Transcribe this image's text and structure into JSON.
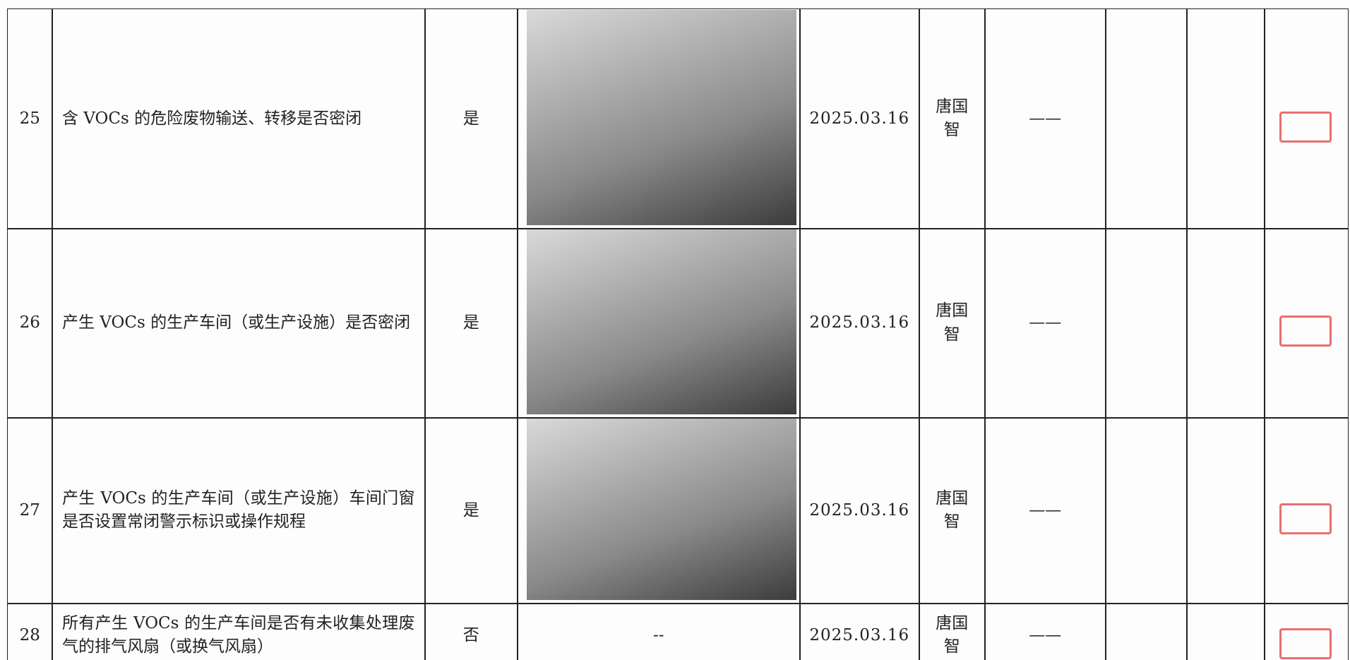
{
  "table": {
    "rows": [
      {
        "no": "25",
        "item": "含 VOCs 的危险废物输送、转移是否密闭",
        "result": "是",
        "date": "2025.03.16",
        "inspector": "唐国智",
        "remark": "——"
      },
      {
        "no": "26",
        "item": "产生 VOCs 的生产车间（或生产设施）是否密闭",
        "result": "是",
        "date": "2025.03.16",
        "inspector": "唐国智",
        "remark": "——"
      },
      {
        "no": "27",
        "item": "产生 VOCs 的生产车间（或生产设施）车间门窗是否设置常闭警示标识或操作规程",
        "result": "是",
        "date": "2025.03.16",
        "inspector": "唐国智",
        "remark": "——"
      },
      {
        "no": "28",
        "item": "所有产生 VOCs 的生产车间是否有未收集处理废气的排气风扇（或换气风扇）",
        "result": "否",
        "photo_note": "--",
        "date": "2025.03.16",
        "inspector": "唐国智",
        "remark": "——"
      }
    ]
  }
}
